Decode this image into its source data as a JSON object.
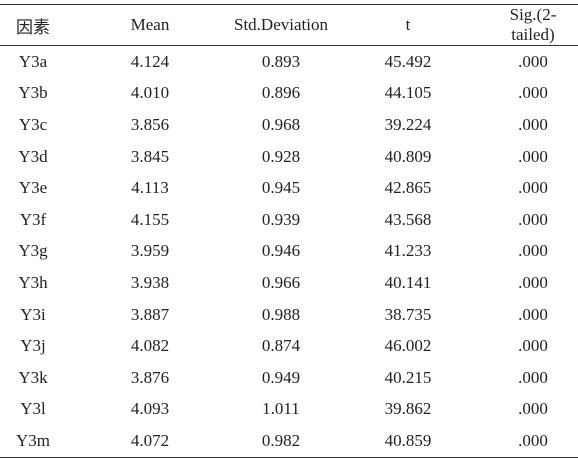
{
  "table": {
    "header": [
      "因素",
      "Mean",
      "Std.Deviation",
      "t",
      "Sig.(2-tailed)"
    ],
    "rows": [
      [
        "Y3a",
        "4.124",
        "0.893",
        "45.492",
        ".000"
      ],
      [
        "Y3b",
        "4.010",
        "0.896",
        "44.105",
        ".000"
      ],
      [
        "Y3c",
        "3.856",
        "0.968",
        "39.224",
        ".000"
      ],
      [
        "Y3d",
        "3.845",
        "0.928",
        "40.809",
        ".000"
      ],
      [
        "Y3e",
        "4.113",
        "0.945",
        "42.865",
        ".000"
      ],
      [
        "Y3f",
        "4.155",
        "0.939",
        "43.568",
        ".000"
      ],
      [
        "Y3g",
        "3.959",
        "0.946",
        "41.233",
        ".000"
      ],
      [
        "Y3h",
        "3.938",
        "0.966",
        "40.141",
        ".000"
      ],
      [
        "Y3i",
        "3.887",
        "0.988",
        "38.735",
        ".000"
      ],
      [
        "Y3j",
        "4.082",
        "0.874",
        "46.002",
        ".000"
      ],
      [
        "Y3k",
        "3.876",
        "0.949",
        "40.215",
        ".000"
      ],
      [
        "Y3l",
        "4.093",
        "1.011",
        "39.862",
        ".000"
      ],
      [
        "Y3m",
        "4.072",
        "0.982",
        "40.859",
        ".000"
      ]
    ]
  }
}
